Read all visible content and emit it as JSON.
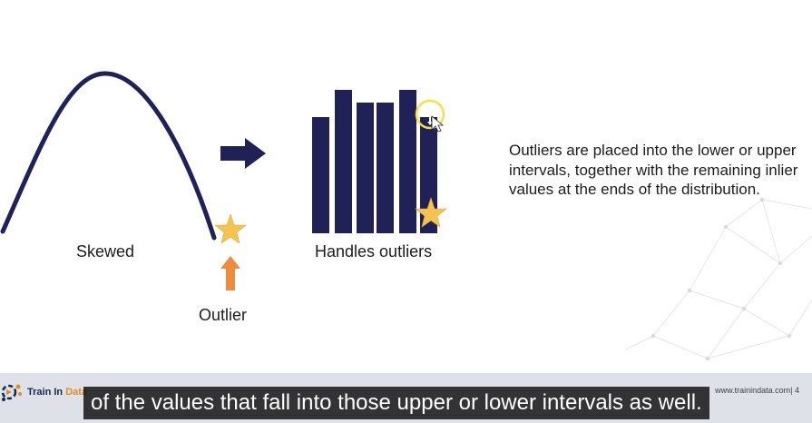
{
  "slide": {
    "skewed_label": "Skewed",
    "outlier_label": "Outlier",
    "handles_label": "Handles outliers",
    "description": "Outliers are placed into the lower or upper intervals, together with the remaining inlier values at the ends of the distribution.",
    "colors": {
      "navy": "#1f2157",
      "star": "#f5c352",
      "arrow_orange": "#f08a3c"
    },
    "icons": [
      "skewed-curve-icon",
      "right-arrow-icon",
      "star-icon",
      "up-arrow-icon",
      "bar-icon",
      "move-cursor-icon"
    ]
  },
  "footer": {
    "logo_name": "Train In Data",
    "logo_part1": "Train In ",
    "logo_part2": "Data",
    "url": "www.trainindata.com|",
    "page_number": "4"
  },
  "caption": {
    "text": "of the values that fall into those upper or lower intervals as well."
  }
}
